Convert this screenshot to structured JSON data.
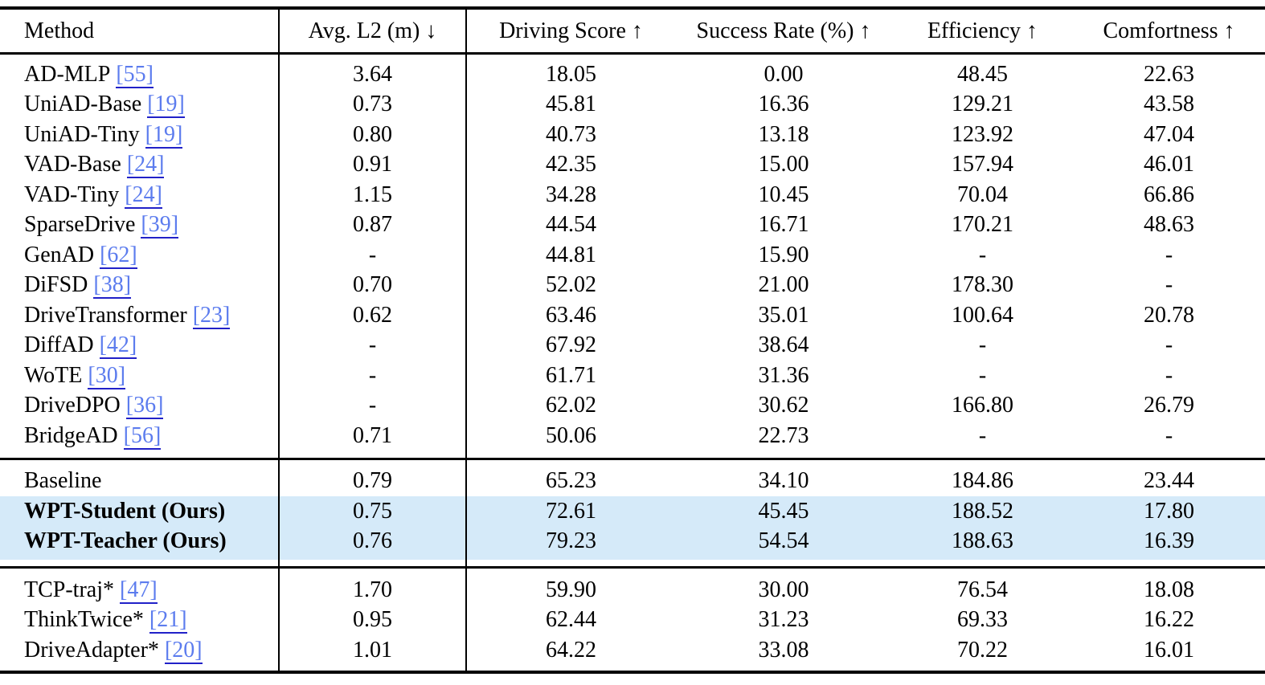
{
  "colors": {
    "background": "#ffffff",
    "text": "#000000",
    "rule": "#000000",
    "highlight": "#d5eaf9",
    "link": "#5c7cee",
    "link_underline": "#2121c8"
  },
  "table": {
    "columns": [
      "Method",
      "Avg. L2 (m) ↓",
      "Driving Score ↑",
      "Success Rate (%) ↑",
      "Efficiency ↑",
      "Comfortness ↑"
    ],
    "missing_value_symbol": "-",
    "sections": [
      {
        "name": "prior-methods",
        "rows": [
          {
            "method": "AD-MLP",
            "cite": "[55]",
            "values": [
              "3.64",
              "18.05",
              "0.00",
              "48.45",
              "22.63"
            ],
            "bold_method": false,
            "bold_values": [],
            "highlight": false
          },
          {
            "method": "UniAD-Base",
            "cite": "[19]",
            "values": [
              "0.73",
              "45.81",
              "16.36",
              "129.21",
              "43.58"
            ],
            "bold_method": false,
            "bold_values": [],
            "highlight": false
          },
          {
            "method": "UniAD-Tiny",
            "cite": "[19]",
            "values": [
              "0.80",
              "40.73",
              "13.18",
              "123.92",
              "47.04"
            ],
            "bold_method": false,
            "bold_values": [],
            "highlight": false
          },
          {
            "method": "VAD-Base",
            "cite": "[24]",
            "values": [
              "0.91",
              "42.35",
              "15.00",
              "157.94",
              "46.01"
            ],
            "bold_method": false,
            "bold_values": [],
            "highlight": false
          },
          {
            "method": "VAD-Tiny",
            "cite": "[24]",
            "values": [
              "1.15",
              "34.28",
              "10.45",
              "70.04",
              "66.86"
            ],
            "bold_method": false,
            "bold_values": [
              4
            ],
            "highlight": false
          },
          {
            "method": "SparseDrive",
            "cite": "[39]",
            "values": [
              "0.87",
              "44.54",
              "16.71",
              "170.21",
              "48.63"
            ],
            "bold_method": false,
            "bold_values": [],
            "highlight": false
          },
          {
            "method": "GenAD",
            "cite": "[62]",
            "values": [
              "-",
              "44.81",
              "15.90",
              "-",
              "-"
            ],
            "bold_method": false,
            "bold_values": [],
            "highlight": false
          },
          {
            "method": "DiFSD",
            "cite": "[38]",
            "values": [
              "0.70",
              "52.02",
              "21.00",
              "178.30",
              "-"
            ],
            "bold_method": false,
            "bold_values": [],
            "highlight": false
          },
          {
            "method": "DriveTransformer",
            "cite": "[23]",
            "values": [
              "0.62",
              "63.46",
              "35.01",
              "100.64",
              "20.78"
            ],
            "bold_method": false,
            "bold_values": [
              0
            ],
            "highlight": false
          },
          {
            "method": "DiffAD",
            "cite": "[42]",
            "values": [
              "-",
              "67.92",
              "38.64",
              "-",
              "-"
            ],
            "bold_method": false,
            "bold_values": [],
            "highlight": false
          },
          {
            "method": "WoTE",
            "cite": "[30]",
            "values": [
              "-",
              "61.71",
              "31.36",
              "-",
              "-"
            ],
            "bold_method": false,
            "bold_values": [],
            "highlight": false
          },
          {
            "method": "DriveDPO",
            "cite": "[36]",
            "values": [
              "-",
              "62.02",
              "30.62",
              "166.80",
              "26.79"
            ],
            "bold_method": false,
            "bold_values": [],
            "highlight": false
          },
          {
            "method": "BridgeAD",
            "cite": "[56]",
            "values": [
              "0.71",
              "50.06",
              "22.73",
              "-",
              "-"
            ],
            "bold_method": false,
            "bold_values": [],
            "highlight": false
          }
        ]
      },
      {
        "name": "ours",
        "rows": [
          {
            "method": "Baseline",
            "cite": null,
            "values": [
              "0.79",
              "65.23",
              "34.10",
              "184.86",
              "23.44"
            ],
            "bold_method": false,
            "bold_values": [],
            "highlight": false
          },
          {
            "method": "WPT-Student (Ours)",
            "cite": null,
            "values": [
              "0.75",
              "72.61",
              "45.45",
              "188.52",
              "17.80"
            ],
            "bold_method": true,
            "bold_values": [],
            "highlight": true
          },
          {
            "method": "WPT-Teacher (Ours)",
            "cite": null,
            "values": [
              "0.76",
              "79.23",
              "54.54",
              "188.63",
              "16.39"
            ],
            "bold_method": true,
            "bold_values": [
              1,
              2,
              3
            ],
            "highlight": true
          }
        ]
      },
      {
        "name": "privileged-methods",
        "rows": [
          {
            "method": "TCP-traj*",
            "cite": "[47]",
            "values": [
              "1.70",
              "59.90",
              "30.00",
              "76.54",
              "18.08"
            ],
            "bold_method": false,
            "bold_values": [],
            "highlight": false
          },
          {
            "method": "ThinkTwice*",
            "cite": "[21]",
            "values": [
              "0.95",
              "62.44",
              "31.23",
              "69.33",
              "16.22"
            ],
            "bold_method": false,
            "bold_values": [],
            "highlight": false
          },
          {
            "method": "DriveAdapter*",
            "cite": "[20]",
            "values": [
              "1.01",
              "64.22",
              "33.08",
              "70.22",
              "16.01"
            ],
            "bold_method": false,
            "bold_values": [],
            "highlight": false
          }
        ]
      }
    ]
  }
}
